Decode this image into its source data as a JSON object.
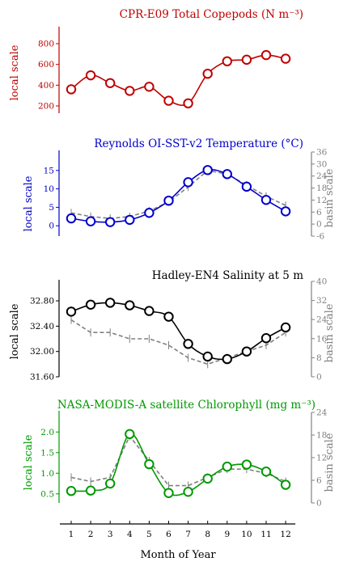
{
  "chart_data": [
    {
      "type": "line",
      "title": "CPR-E09 Total Copepods (N m⁻³)",
      "color": "#c00000",
      "ylabel_left": "local scale",
      "ylabel_right": "",
      "yticks_left": [
        "200",
        "400",
        "600",
        "800"
      ],
      "yticks_right": [],
      "x": [
        1,
        2,
        3,
        4,
        5,
        6,
        7,
        8,
        9,
        10,
        11,
        12
      ],
      "series": [
        {
          "axis": "local",
          "values": [
            360,
            495,
            420,
            345,
            385,
            250,
            225,
            510,
            630,
            645,
            690,
            655
          ]
        }
      ],
      "ylim_left": [
        130,
        870
      ]
    },
    {
      "type": "line",
      "title": "Reynolds OI-SST-v2 Temperature (°C)",
      "color": "#0000cc",
      "ylabel_left": "local scale",
      "ylabel_right": "basin scale",
      "yticks_left": [
        "0",
        "5",
        "10",
        "15"
      ],
      "yticks_right": [
        "-6",
        "0",
        "6",
        "12",
        "18",
        "24",
        "30",
        "36"
      ],
      "x": [
        1,
        2,
        3,
        4,
        5,
        6,
        7,
        8,
        9,
        10,
        11,
        12
      ],
      "series": [
        {
          "axis": "local",
          "values": [
            2.0,
            1.2,
            1.0,
            1.6,
            3.5,
            6.8,
            11.8,
            15.1,
            14.0,
            10.6,
            7.0,
            3.9
          ]
        },
        {
          "axis": "basin",
          "values": [
            3.5,
            2.5,
            2.0,
            2.5,
            4.0,
            6.5,
            10.5,
            15.0,
            14.0,
            11.0,
            8.0,
            5.5
          ],
          "dashed": true
        }
      ],
      "ylim_left": [
        -2.8,
        17.8
      ],
      "ylim_right": [
        -6,
        36
      ]
    },
    {
      "type": "line",
      "title": "Hadley-EN4 Salinity at 5 m",
      "color": "#000000",
      "ylabel_left": "local scale",
      "ylabel_right": "basin scale",
      "yticks_left": [
        "31.60",
        "32.00",
        "32.40",
        "32.80"
      ],
      "yticks_right": [
        "0",
        "8",
        "16",
        "24",
        "32",
        "40"
      ],
      "x": [
        1,
        2,
        3,
        4,
        5,
        6,
        7,
        8,
        9,
        10,
        11,
        12
      ],
      "series": [
        {
          "axis": "local",
          "values": [
            32.63,
            32.74,
            32.77,
            32.73,
            32.64,
            32.55,
            32.12,
            31.92,
            31.88,
            32.0,
            32.21,
            32.38
          ]
        },
        {
          "axis": "basin",
          "values": [
            32.5,
            32.3,
            32.3,
            32.2,
            32.2,
            32.1,
            31.9,
            31.8,
            31.9,
            32.0,
            32.1,
            32.3
          ],
          "dashed": true
        }
      ],
      "ylim_left": [
        31.6,
        32.98
      ],
      "ylim_right": [
        0,
        40
      ]
    },
    {
      "type": "line",
      "title": "NASA-MODIS-A satellite Chlorophyll (mg m⁻³)",
      "color": "#009900",
      "ylabel_left": "local scale",
      "ylabel_right": "basin scale",
      "yticks_left": [
        "0.5",
        "1.0",
        "1.5",
        "2.0"
      ],
      "yticks_right": [
        "0",
        "6",
        "12",
        "18",
        "24"
      ],
      "x": [
        1,
        2,
        3,
        4,
        5,
        6,
        7,
        8,
        9,
        10,
        11,
        12
      ],
      "series": [
        {
          "axis": "local",
          "values": [
            0.57,
            0.58,
            0.75,
            1.95,
            1.22,
            0.52,
            0.55,
            0.87,
            1.16,
            1.21,
            1.04,
            0.72
          ]
        },
        {
          "axis": "basin",
          "values": [
            0.9,
            0.8,
            0.9,
            1.9,
            1.3,
            0.7,
            0.7,
            0.9,
            1.1,
            1.1,
            1.0,
            0.8
          ],
          "dashed": true
        }
      ],
      "ylim_left": [
        0.28,
        2.28
      ],
      "ylim_right": [
        0,
        24
      ]
    }
  ],
  "xaxis": {
    "label": "Month of Year",
    "ticks": [
      "1",
      "2",
      "3",
      "4",
      "5",
      "6",
      "7",
      "8",
      "9",
      "10",
      "11",
      "12"
    ]
  }
}
